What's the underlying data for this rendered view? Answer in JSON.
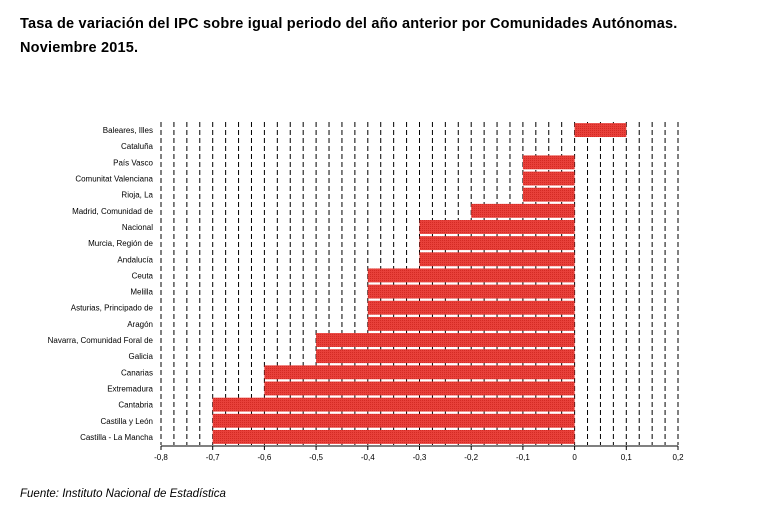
{
  "title_line1": "Tasa de variación del IPC sobre igual periodo del año anterior por Comunidades Autónomas.",
  "title_line2": "Noviembre 2015.",
  "source": "Fuente: Instituto Nacional de Estadística",
  "chart_data": {
    "type": "bar",
    "orientation": "horizontal",
    "categories": [
      "Baleares, Illes",
      "Cataluña",
      "País Vasco",
      "Comunitat Valenciana",
      "Rioja, La",
      "Madrid, Comunidad de",
      "Nacional",
      "Murcia, Región de",
      "Andalucía",
      "Ceuta",
      "Melilla",
      "Asturias, Principado de",
      "Aragón",
      "Navarra, Comunidad Foral de",
      "Galicia",
      "Canarias",
      "Extremadura",
      "Cantabria",
      "Castilla y León",
      "Castilla - La Mancha"
    ],
    "values": [
      0.1,
      0.0,
      -0.1,
      -0.1,
      -0.1,
      -0.2,
      -0.3,
      -0.3,
      -0.3,
      -0.4,
      -0.4,
      -0.4,
      -0.4,
      -0.5,
      -0.5,
      -0.6,
      -0.6,
      -0.7,
      -0.7,
      -0.7
    ],
    "xlim": [
      -0.8,
      0.2
    ],
    "xticks": [
      "-0,8",
      "-0,7",
      "-0,6",
      "-0,5",
      "-0,4",
      "-0,3",
      "-0,2",
      "-0,1",
      "0",
      "0,1",
      "0,2"
    ],
    "grid": "vertical dashed",
    "bar_color": "#e8403a"
  }
}
